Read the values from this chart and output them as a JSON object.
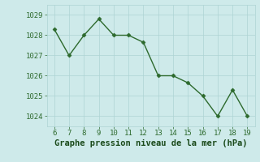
{
  "x": [
    6,
    7,
    8,
    9,
    10,
    11,
    12,
    13,
    14,
    15,
    16,
    17,
    18,
    19
  ],
  "y": [
    1028.3,
    1027.0,
    1028.0,
    1028.8,
    1028.0,
    1028.0,
    1027.65,
    1026.0,
    1026.0,
    1025.65,
    1025.0,
    1024.0,
    1025.3,
    1024.0
  ],
  "line_color": "#2d6a2d",
  "marker_color": "#2d6a2d",
  "background_color": "#ceeaea",
  "grid_color": "#aed4d4",
  "xlabel": "Graphe pression niveau de la mer (hPa)",
  "xlabel_color": "#1a4a1a",
  "xlim": [
    5.5,
    19.5
  ],
  "ylim": [
    1023.5,
    1029.5
  ],
  "yticks": [
    1024,
    1025,
    1026,
    1027,
    1028,
    1029
  ],
  "xticks": [
    6,
    7,
    8,
    9,
    10,
    11,
    12,
    13,
    14,
    15,
    16,
    17,
    18,
    19
  ],
  "tick_color": "#2d6a2d",
  "tick_fontsize": 6.5,
  "xlabel_fontsize": 7.5,
  "linewidth": 1.0,
  "markersize": 2.5
}
